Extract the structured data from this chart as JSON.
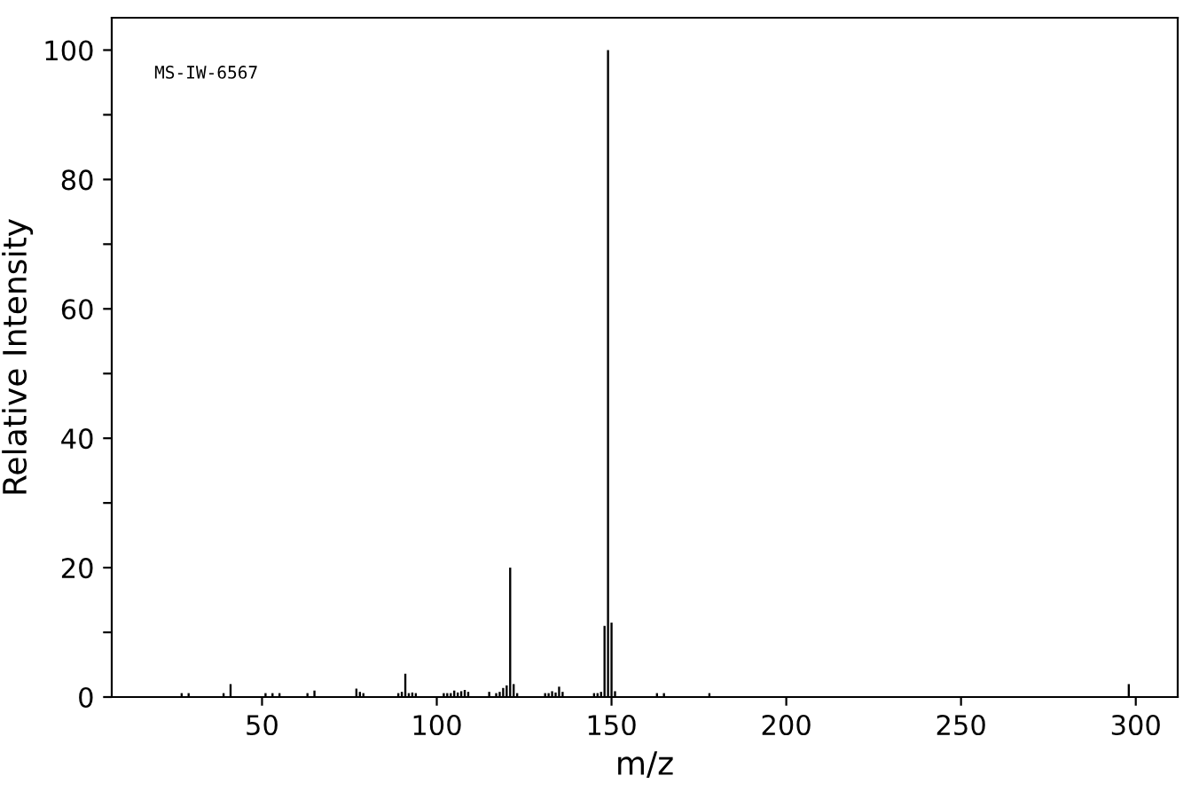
{
  "chart_data": {
    "type": "bar",
    "xlabel": "m/z",
    "ylabel": "Relative Intensity",
    "annotations": [
      "MS-IW-6567"
    ],
    "x": [
      27,
      29,
      39,
      41,
      51,
      53,
      55,
      63,
      65,
      77,
      78,
      79,
      89,
      90,
      91,
      92,
      93,
      94,
      102,
      103,
      104,
      105,
      106,
      107,
      108,
      109,
      115,
      117,
      118,
      119,
      120,
      121,
      122,
      123,
      131,
      132,
      133,
      134,
      135,
      136,
      145,
      146,
      147,
      148,
      149,
      150,
      151,
      163,
      165,
      178,
      298
    ],
    "values": [
      0.6,
      0.6,
      0.6,
      2.0,
      0.6,
      0.6,
      0.6,
      0.6,
      1.0,
      1.3,
      0.8,
      0.6,
      0.6,
      0.8,
      3.6,
      0.6,
      0.7,
      0.6,
      0.6,
      0.6,
      0.6,
      1.0,
      0.7,
      0.9,
      1.1,
      0.8,
      0.8,
      0.6,
      0.8,
      1.4,
      1.8,
      20,
      2.0,
      0.6,
      0.6,
      0.6,
      0.9,
      0.7,
      1.6,
      0.8,
      0.6,
      0.6,
      0.8,
      11,
      100,
      11.5,
      0.9,
      0.6,
      0.6,
      0.6,
      2.0
    ],
    "color": "#000000",
    "xlim": [
      7,
      312
    ],
    "ylim": [
      0,
      105
    ],
    "xticks": [
      50,
      100,
      150,
      200,
      250,
      300
    ],
    "yticks": [
      0,
      {
        "value": 10,
        "label": null
      },
      20,
      {
        "value": 30,
        "label": null
      },
      40,
      {
        "value": 50,
        "label": null
      },
      60,
      {
        "value": 70,
        "label": null
      },
      80,
      {
        "value": 90,
        "label": null
      },
      100
    ],
    "grid": false,
    "legend": false
  }
}
